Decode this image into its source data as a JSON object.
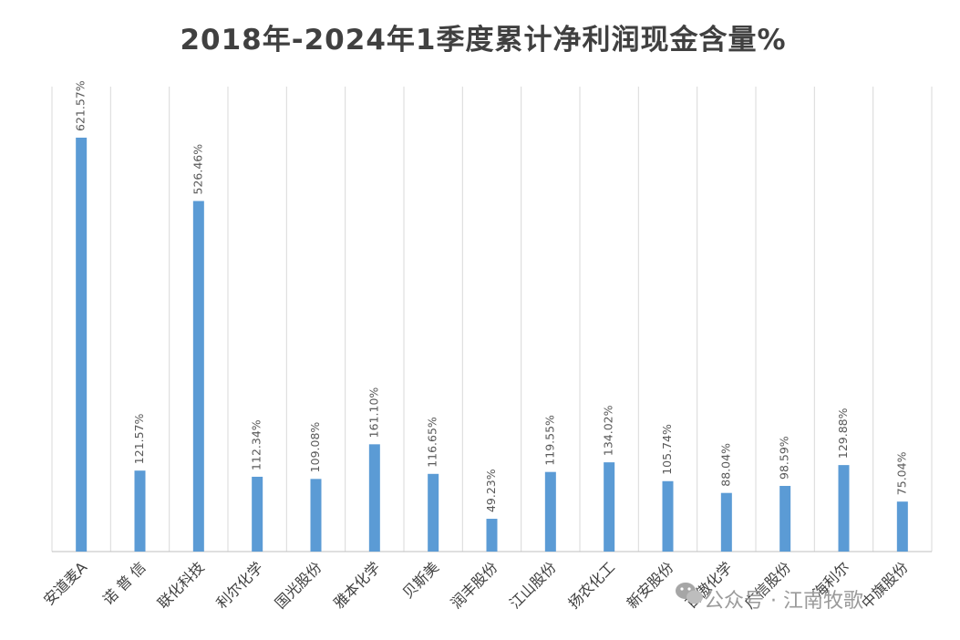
{
  "chart_data": {
    "type": "bar",
    "title": "2018年-2024年1季度累计净利润现金含量%",
    "xlabel": "",
    "ylabel": "",
    "ylim": [
      0,
      700
    ],
    "grid": "vertical-category-lines",
    "legend": "none",
    "bar_color": "#5B9BD5",
    "categories": [
      "安道麦A",
      "诺 普 信",
      "联化科技",
      "利尔化学",
      "国光股份",
      "雅本化学",
      "贝斯美",
      "润丰股份",
      "江山股份",
      "扬农化工",
      "新安股份",
      "百傲化学",
      "广信股份",
      "海利尔",
      "中旗股份"
    ],
    "values": [
      621.57,
      121.57,
      526.46,
      112.34,
      109.08,
      161.1,
      116.65,
      49.23,
      119.55,
      134.02,
      105.74,
      88.04,
      98.59,
      129.88,
      75.04
    ],
    "data_labels": [
      "621.57%",
      "121.57%",
      "526.46%",
      "112.34%",
      "109.08%",
      "161.10%",
      "116.65%",
      "49.23%",
      "119.55%",
      "134.02%",
      "105.74%",
      "88.04%",
      "98.59%",
      "129.88%",
      "75.04%"
    ]
  },
  "watermark": {
    "text": "公众号 · 江南牧歌",
    "icon": "wechat-icon"
  }
}
